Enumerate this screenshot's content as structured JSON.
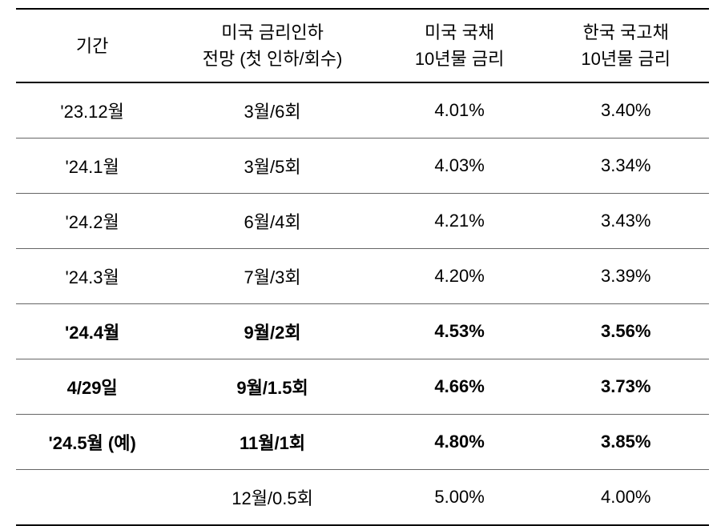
{
  "table": {
    "type": "table",
    "background_color": "#ffffff",
    "border_color_heavy": "#000000",
    "border_color_light": "#666666",
    "font_family": "Malgun Gothic",
    "header_fontsize": 22,
    "cell_fontsize": 22,
    "text_color": "#000000",
    "columns": [
      {
        "label_line1": "기간",
        "label_line2": "",
        "width_pct": 22,
        "align": "center"
      },
      {
        "label_line1": "미국 금리인하",
        "label_line2": "전망 (첫 인하/회수)",
        "width_pct": 30,
        "align": "center"
      },
      {
        "label_line1": "미국 국채",
        "label_line2": "10년물 금리",
        "width_pct": 24,
        "align": "center"
      },
      {
        "label_line1": "한국 국고채",
        "label_line2": "10년물 금리",
        "width_pct": 24,
        "align": "center"
      }
    ],
    "rows": [
      {
        "bold": false,
        "cells": [
          "'23.12월",
          "3월/6회",
          "4.01%",
          "3.40%"
        ]
      },
      {
        "bold": false,
        "cells": [
          "'24.1월",
          "3월/5회",
          "4.03%",
          "3.34%"
        ]
      },
      {
        "bold": false,
        "cells": [
          "'24.2월",
          "6월/4회",
          "4.21%",
          "3.43%"
        ]
      },
      {
        "bold": false,
        "cells": [
          "'24.3월",
          "7월/3회",
          "4.20%",
          "3.39%"
        ]
      },
      {
        "bold": true,
        "cells": [
          "'24.4월",
          "9월/2회",
          "4.53%",
          "3.56%"
        ]
      },
      {
        "bold": true,
        "cells": [
          "4/29일",
          "9월/1.5회",
          "4.66%",
          "3.73%"
        ]
      },
      {
        "bold": true,
        "cells": [
          "'24.5월  (예)",
          "11월/1회",
          "4.80%",
          "3.85%"
        ]
      },
      {
        "bold": false,
        "cells": [
          "",
          "12월/0.5회",
          "5.00%",
          "4.00%"
        ]
      }
    ]
  }
}
